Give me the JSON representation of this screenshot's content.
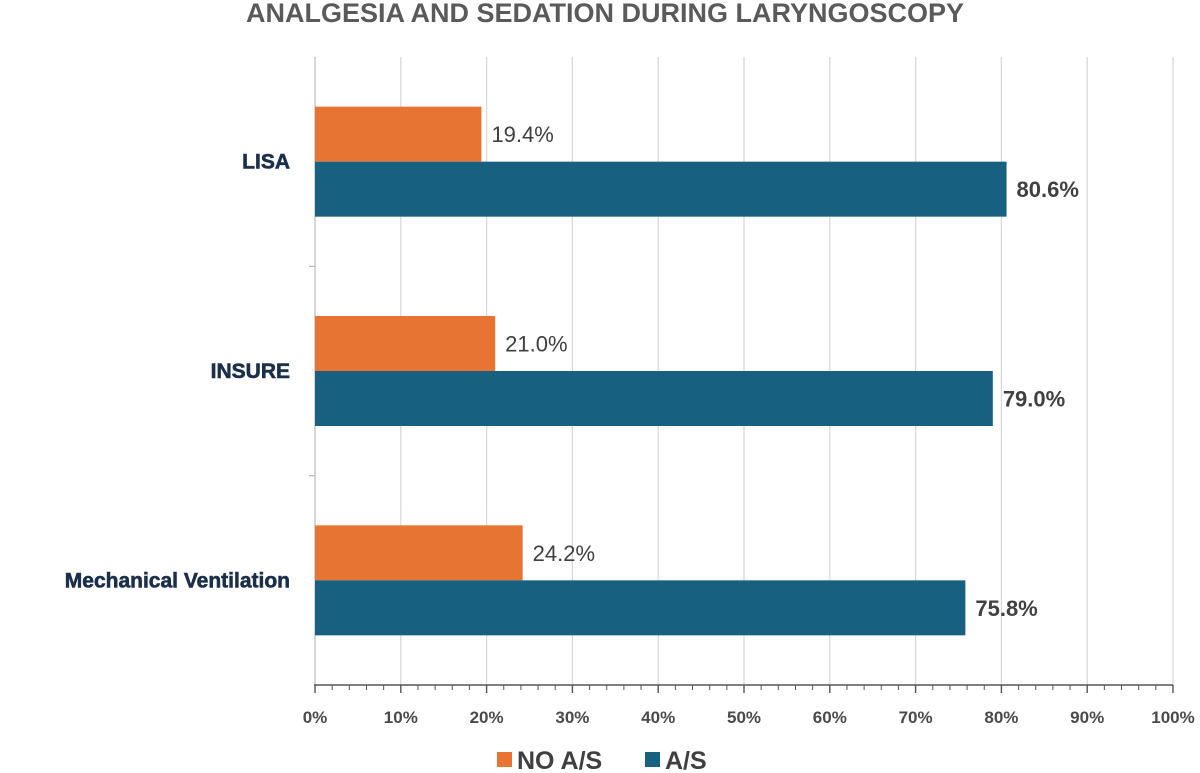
{
  "chart_data": {
    "type": "bar",
    "orientation": "horizontal",
    "title": "ANALGESIA AND SEDATION DURING LARYNGOSCOPY",
    "categories": [
      "LISA",
      "INSURE",
      "Mechanical Ventilation"
    ],
    "series": [
      {
        "name": "NO A/S",
        "color": "#e87433",
        "values": [
          19.4,
          21.0,
          24.2
        ],
        "labels": [
          "19.4%",
          "21.0%",
          "24.2%"
        ]
      },
      {
        "name": "A/S",
        "color": "#17607f",
        "values": [
          80.6,
          79.0,
          75.8
        ],
        "labels": [
          "80.6%",
          "79.0%",
          "75.8%"
        ]
      }
    ],
    "xlim": [
      0,
      100
    ],
    "xticks": [
      0,
      10,
      20,
      30,
      40,
      50,
      60,
      70,
      80,
      90,
      100
    ],
    "xtick_labels": [
      "0%",
      "10%",
      "20%",
      "30%",
      "40%",
      "50%",
      "60%",
      "70%",
      "80%",
      "90%",
      "100%"
    ],
    "xlabel": "",
    "ylabel": "",
    "grid": true,
    "legend_position": "bottom-center"
  }
}
